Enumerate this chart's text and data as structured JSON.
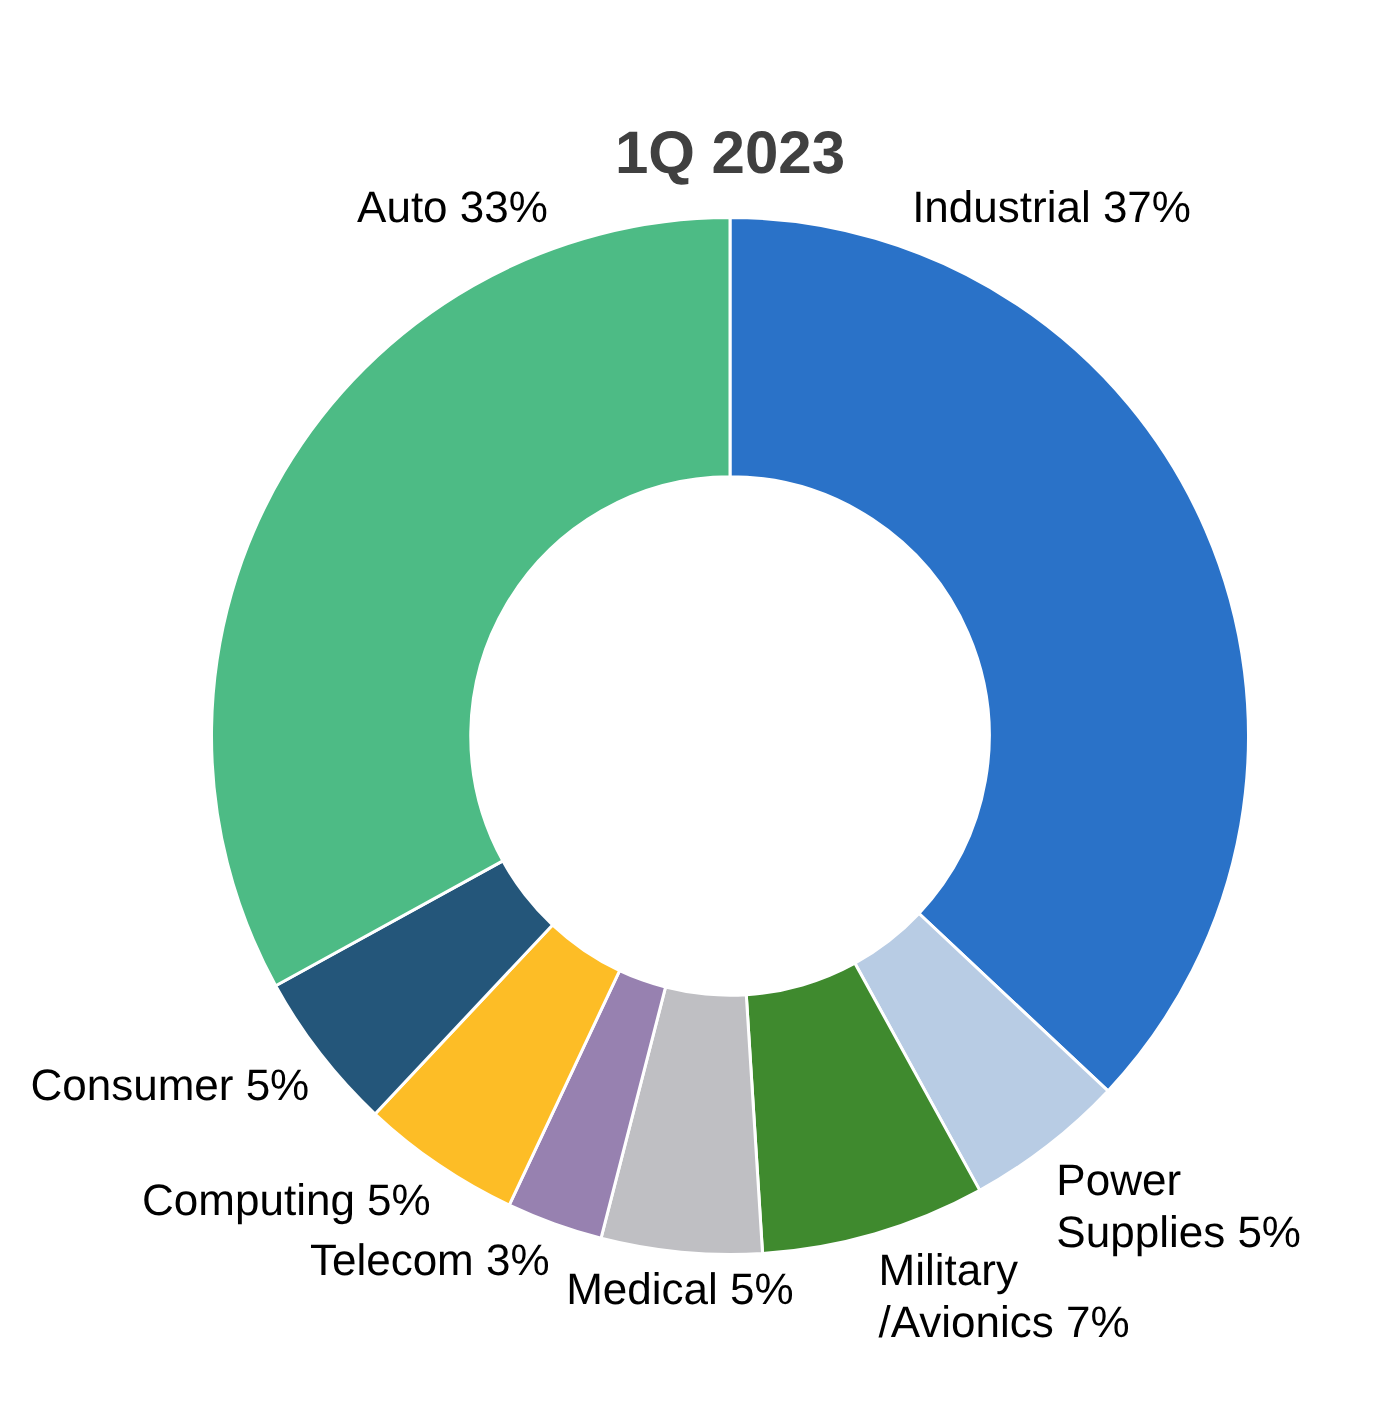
{
  "chart_data": {
    "type": "donut",
    "title": "1Q 2023",
    "categories": [
      "Industrial",
      "Power Supplies",
      "Military/Avionics",
      "Medical",
      "Telecom",
      "Computing",
      "Consumer",
      "Auto"
    ],
    "values": [
      37,
      5,
      7,
      5,
      3,
      5,
      5,
      33
    ],
    "colors": [
      "#2a72c8",
      "#b8cce4",
      "#3f8a2e",
      "#bfbfc3",
      "#9781b0",
      "#fdbd26",
      "#24567a",
      "#4dbb85"
    ],
    "value_labels": [
      "37%",
      "5%",
      "7%",
      "5%",
      "3%",
      "5%",
      "5%",
      "33%"
    ],
    "legend": false
  }
}
